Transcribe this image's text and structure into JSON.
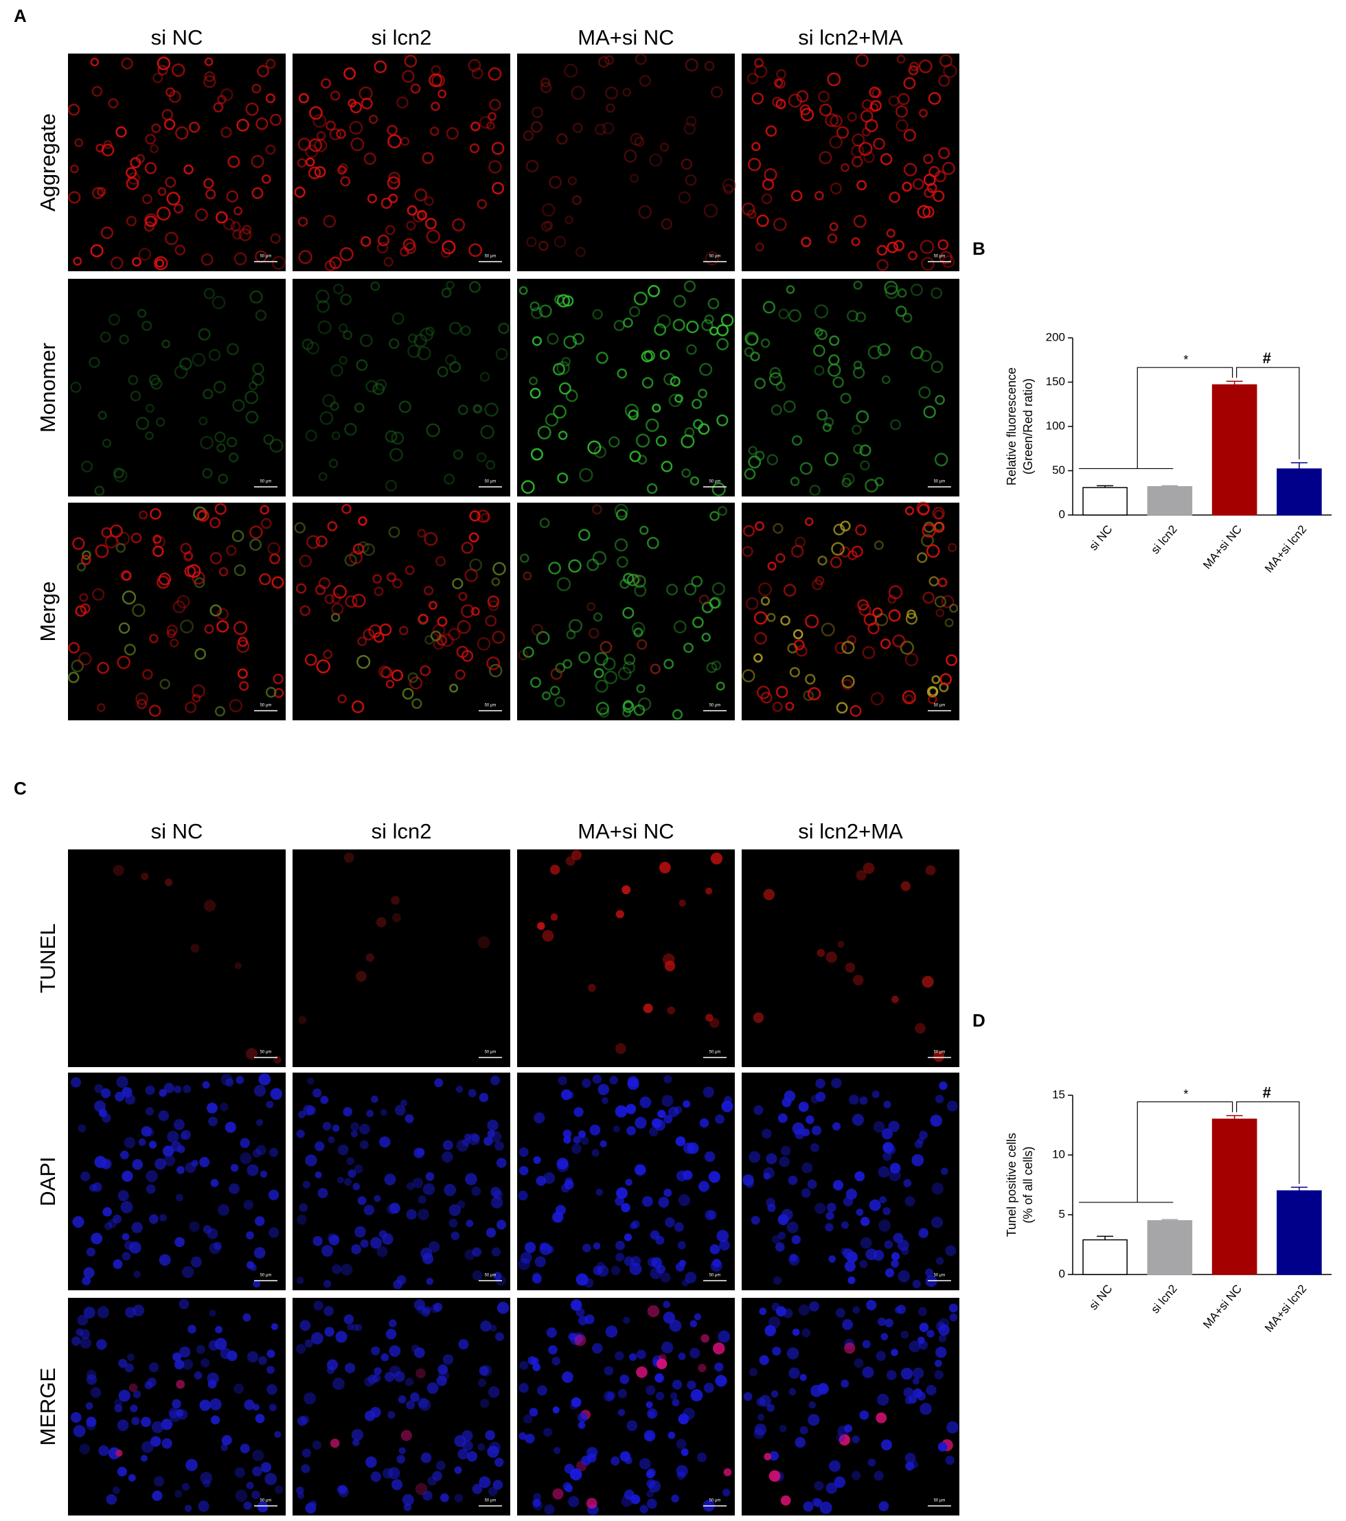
{
  "figure": {
    "panel_labels": [
      "A",
      "B",
      "C",
      "D"
    ],
    "panel_a": {
      "columns": [
        "si NC",
        "si lcn2",
        "MA+si NC",
        "si lcn2+MA"
      ],
      "rows": [
        "Aggregate",
        "Monomer",
        "Merge"
      ]
    },
    "panel_c": {
      "columns": [
        "si NC",
        "si lcn2",
        "MA+si NC",
        "si lcn2+MA"
      ],
      "rows": [
        "TUNEL",
        "DAPI",
        "MERGE"
      ]
    },
    "scale_bar": "50 μm"
  },
  "chart_data": [
    {
      "type": "bar",
      "ylabel": [
        "Relative fluorescence",
        "(Green/Red ratio)"
      ],
      "categories": [
        "si NC",
        "si lcn2",
        "MA+si NC",
        "MA+si lcn2"
      ],
      "values": [
        31,
        32,
        147,
        52
      ],
      "errors": [
        2,
        1,
        4,
        7
      ],
      "colors": [
        "#ffffff",
        "#a6a6a8",
        "#a50000",
        "#00008b"
      ],
      "ylim": [
        0,
        200
      ],
      "yticks": [
        0,
        50,
        100,
        150,
        200
      ],
      "annotations": [
        "*",
        "#"
      ]
    },
    {
      "type": "bar",
      "ylabel": [
        "Tunel positive cells",
        "(% of all cells)"
      ],
      "categories": [
        "si NC",
        "si lcn2",
        "MA+si NC",
        "MA+si lcn2"
      ],
      "values": [
        2.9,
        4.5,
        13.0,
        7.0
      ],
      "errors": [
        0.3,
        0.1,
        0.3,
        0.3
      ],
      "colors": [
        "#ffffff",
        "#a6a6a8",
        "#a50000",
        "#00008b"
      ],
      "ylim": [
        0,
        15
      ],
      "yticks": [
        0,
        5,
        10,
        15
      ],
      "annotations": [
        "*",
        "#"
      ]
    }
  ]
}
